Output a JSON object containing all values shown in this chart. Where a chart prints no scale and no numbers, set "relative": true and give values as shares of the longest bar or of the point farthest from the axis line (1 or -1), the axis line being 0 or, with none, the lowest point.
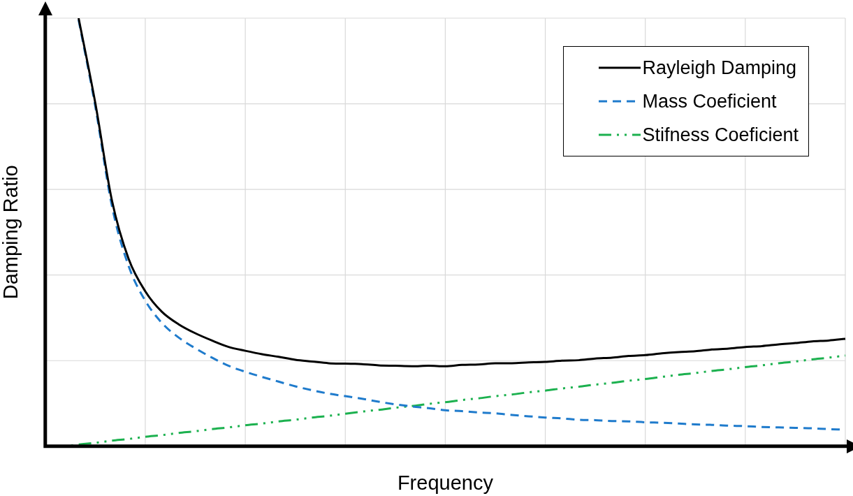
{
  "chart_data": {
    "type": "line",
    "relative": true,
    "xlabel": "Frequency",
    "ylabel": "Damping Ratio",
    "grid": true,
    "legend": "top right",
    "marker": "none",
    "categories": [
      null,
      null,
      null,
      null,
      null,
      null,
      null,
      null,
      null,
      null,
      null,
      null,
      null,
      null,
      null,
      null,
      null,
      null,
      null,
      null,
      null,
      null,
      null,
      null,
      null,
      null,
      null,
      null,
      null,
      null,
      null,
      null,
      null,
      null,
      null,
      null,
      null,
      null,
      null,
      null,
      null,
      null,
      null,
      null,
      null,
      null,
      null,
      null,
      null
    ],
    "series": [
      {
        "name": "Rayleigh Damping",
        "color": "#000000",
        "line_style": "solid",
        "values": [
          null,
          null,
          1.0,
          0.802,
          0.574,
          0.438,
          0.362,
          0.314,
          0.285,
          0.264,
          0.247,
          0.232,
          0.223,
          0.215,
          0.209,
          0.202,
          0.198,
          0.194,
          0.193,
          0.192,
          0.189,
          0.188,
          0.187,
          0.188,
          0.187,
          0.19,
          0.191,
          0.194,
          0.194,
          0.196,
          0.197,
          0.2,
          0.201,
          0.205,
          0.207,
          0.211,
          0.213,
          0.217,
          0.22,
          0.222,
          0.226,
          0.228,
          0.232,
          0.234,
          0.238,
          0.241,
          0.245,
          0.247,
          0.251
        ]
      },
      {
        "name": "Mass Coeficient",
        "color": "#1f7bcc",
        "line_style": "dashed",
        "values": [
          null,
          null,
          0.996,
          0.794,
          0.561,
          0.421,
          0.34,
          0.288,
          0.254,
          0.229,
          0.207,
          0.188,
          0.174,
          0.162,
          0.151,
          0.14,
          0.131,
          0.123,
          0.117,
          0.111,
          0.104,
          0.098,
          0.093,
          0.089,
          0.084,
          0.082,
          0.079,
          0.077,
          0.073,
          0.07,
          0.067,
          0.065,
          0.062,
          0.061,
          0.059,
          0.058,
          0.056,
          0.055,
          0.053,
          0.051,
          0.05,
          0.048,
          0.047,
          0.045,
          0.044,
          0.043,
          0.042,
          0.04,
          0.039
        ]
      },
      {
        "name": "Stifness Coeficient",
        "color": "#1cb14f",
        "line_style": "dashdot",
        "values": [
          0,
          0,
          0.004,
          0.008,
          0.013,
          0.017,
          0.022,
          0.026,
          0.031,
          0.035,
          0.04,
          0.044,
          0.049,
          0.053,
          0.058,
          0.062,
          0.067,
          0.071,
          0.076,
          0.081,
          0.085,
          0.09,
          0.094,
          0.099,
          0.103,
          0.108,
          0.112,
          0.117,
          0.121,
          0.126,
          0.13,
          0.135,
          0.139,
          0.144,
          0.148,
          0.153,
          0.157,
          0.162,
          0.167,
          0.171,
          0.176,
          0.18,
          0.185,
          0.189,
          0.194,
          0.198,
          0.203,
          0.207,
          0.212
        ]
      }
    ]
  }
}
